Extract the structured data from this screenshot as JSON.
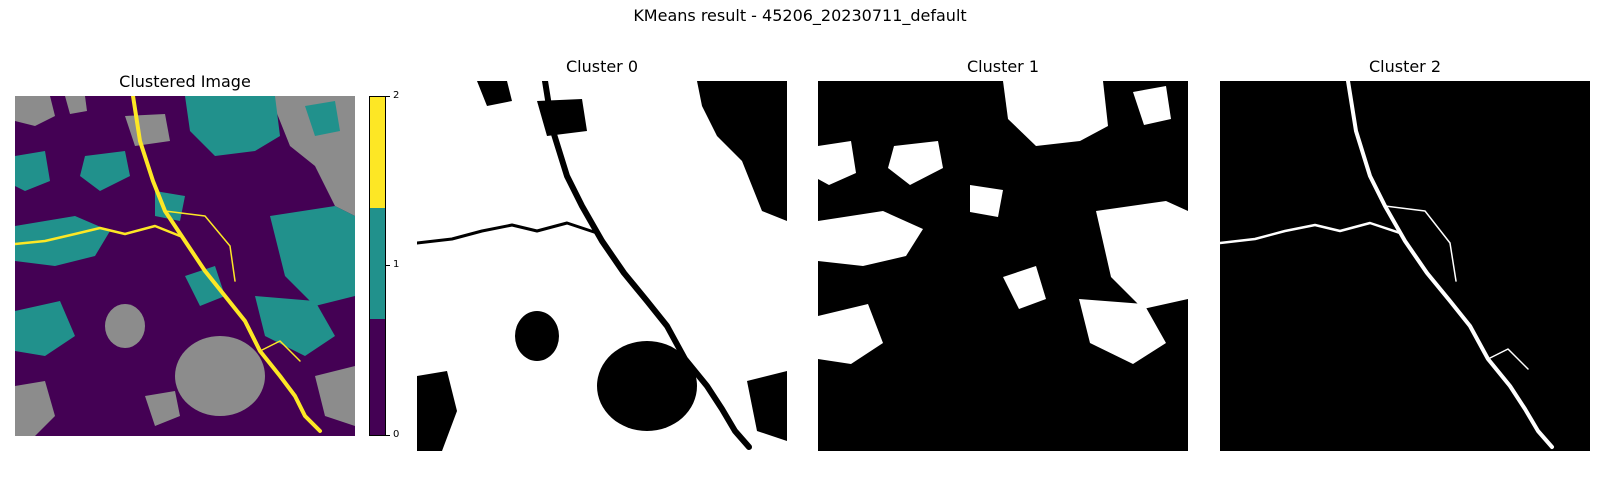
{
  "figure": {
    "title": "KMeans result - 45206_20230711_default"
  },
  "panels": {
    "clustered": {
      "title": "Clustered Image"
    },
    "cluster0": {
      "title": "Cluster 0"
    },
    "cluster1": {
      "title": "Cluster 1"
    },
    "cluster2": {
      "title": "Cluster 2"
    }
  },
  "colorbar": {
    "ticks": [
      "0",
      "1",
      "2"
    ],
    "colors": {
      "class0": "#440154",
      "class1": "#21918c",
      "class2": "#fde725"
    }
  },
  "colors": {
    "nodata": "#8c8c8c",
    "mask_on": "#ffffff",
    "mask_off": "#000000"
  }
}
